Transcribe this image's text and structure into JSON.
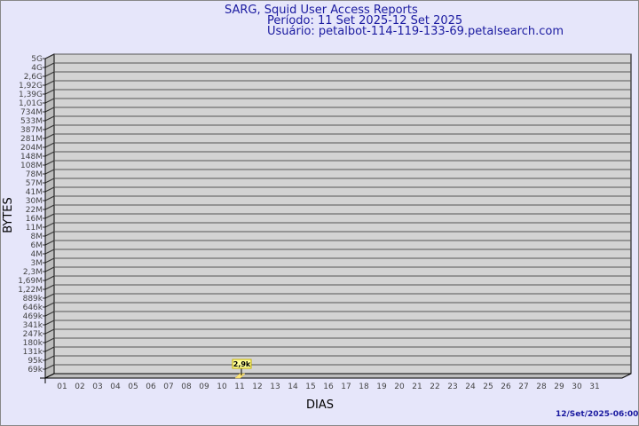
{
  "header": {
    "title": "SARG, Squid User Access Reports",
    "period": "Período: 11 Set 2025-12 Set 2025",
    "user": "Usuário: petalbot-114-119-133-69.petalsearch.com"
  },
  "footer": {
    "timestamp": "12/Set/2025-06:00"
  },
  "colors": {
    "background": "#e6e6fa",
    "plot": "#d3d3d3",
    "bar": "#ffe87a",
    "text": "#1a1aa0"
  },
  "chart_data": {
    "type": "bar",
    "xlabel": "DIAS",
    "ylabel": "BYTES",
    "y_scale": "log",
    "y_ticks": [
      "5G",
      "4G",
      "2,6G",
      "1,92G",
      "1,39G",
      "1,01G",
      "734M",
      "533M",
      "387M",
      "281M",
      "204M",
      "148M",
      "108M",
      "78M",
      "57M",
      "41M",
      "30M",
      "22M",
      "16M",
      "11M",
      "8M",
      "6M",
      "4M",
      "3M",
      "2,3M",
      "1,69M",
      "1,22M",
      "889k",
      "646k",
      "469k",
      "341k",
      "247k",
      "180k",
      "131k",
      "95k",
      "69k"
    ],
    "categories": [
      "01",
      "02",
      "03",
      "04",
      "05",
      "06",
      "07",
      "08",
      "09",
      "10",
      "11",
      "12",
      "13",
      "14",
      "15",
      "16",
      "17",
      "18",
      "19",
      "20",
      "21",
      "22",
      "23",
      "24",
      "25",
      "26",
      "27",
      "28",
      "29",
      "30",
      "31"
    ],
    "values": [
      {
        "x": "11",
        "y": 2900,
        "label": "2,9k"
      }
    ],
    "grid": true
  }
}
